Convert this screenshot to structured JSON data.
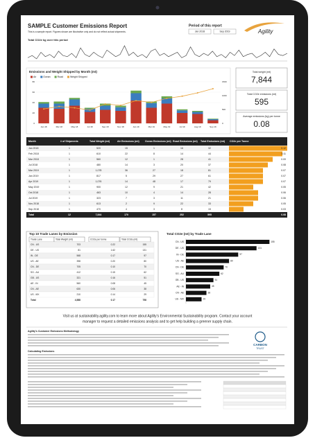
{
  "header": {
    "title": "SAMPLE Customer Emissions Report",
    "subtitle": "This is a sample report. Figures shown are illustrative only and do not reflect actual shipments.",
    "period_label": "Period of this report",
    "from": "Jan 2018",
    "to": "Sep 2019",
    "logo": "Agility"
  },
  "sparkline": {
    "title": "Total CO2e kg over this period",
    "values": [
      3,
      5,
      2,
      8,
      4,
      6,
      3,
      9,
      5,
      4,
      7,
      3,
      12,
      6,
      4,
      8,
      5,
      3,
      10,
      7,
      4,
      6,
      14,
      5,
      8,
      4,
      6,
      3,
      9,
      11,
      5,
      7,
      4,
      6,
      8,
      3,
      5,
      13,
      6,
      4,
      7,
      5,
      9,
      4,
      6,
      3,
      8,
      5,
      10,
      4,
      6,
      7,
      3,
      5,
      8,
      4,
      11,
      6,
      5,
      7
    ]
  },
  "chart_data": {
    "type": "bar",
    "title": "Emissions and Weight Shipped by Month (mt)",
    "categories": [
      "Jan 18",
      "Mar 18",
      "May 18",
      "Jul 18",
      "Sep 18",
      "Nov 18",
      "Jan 19",
      "Mar 19",
      "May 19",
      "Jul 19",
      "Aug 19",
      "Sep 19"
    ],
    "series": [
      {
        "name": "Air",
        "color": "#c0392b",
        "values": [
          30,
          28,
          34,
          22,
          26,
          24,
          44,
          30,
          38,
          20,
          18,
          6
        ]
      },
      {
        "name": "Ocean",
        "color": "#3b7dbf",
        "values": [
          8,
          10,
          12,
          6,
          8,
          7,
          14,
          9,
          10,
          5,
          4,
          2
        ]
      },
      {
        "name": "Road",
        "color": "#6aa84f",
        "values": [
          3,
          4,
          3,
          2,
          4,
          3,
          5,
          3,
          4,
          2,
          2,
          1
        ]
      },
      {
        "name": "Weight Shipped",
        "color": "#e8a33d",
        "axis": "y2",
        "values": [
          520,
          610,
          560,
          480,
          700,
          650,
          820,
          760,
          900,
          980,
          1100,
          1250
        ]
      }
    ],
    "ylim": [
      0,
      80
    ],
    "yticks": [
      0,
      20,
      40,
      60,
      80
    ],
    "y2lim": [
      0,
      1500
    ],
    "y2ticks": [
      0,
      500,
      1000,
      1500
    ]
  },
  "kpis": [
    {
      "label": "Total weight (mt)",
      "value": "7,844"
    },
    {
      "label": "Total CO2e emissions (mt)",
      "value": "595"
    },
    {
      "label": "Average emissions (kg) per tonne",
      "value": "0.08"
    }
  ],
  "table": {
    "columns": [
      "Month",
      "# of Shipments",
      "Total Weight (mt)",
      "Air Emissions (mt)",
      "Ocean Emissions (mt)",
      "Road Emissions (mt)",
      "Total Emissions (mt)",
      "CO2e per Tonne"
    ],
    "rows": [
      [
        "Jan 2018",
        "1",
        "520",
        "15",
        "1",
        "16",
        "32",
        0.12
      ],
      [
        "Feb 2018",
        "1",
        "610",
        "22",
        "8",
        "14",
        "44",
        0.11
      ],
      [
        "Mar 2018",
        "1",
        "560",
        "12",
        "1",
        "28",
        "41",
        0.09
      ],
      [
        "Jul 2018",
        "1",
        "480",
        "14",
        "3",
        "20",
        "37",
        0.08
      ],
      [
        "Mar 2019",
        "1",
        "1,078",
        "36",
        "27",
        "18",
        "81",
        0.07
      ],
      [
        "Jan 2019",
        "1",
        "817",
        "5",
        "29",
        "27",
        "61",
        0.07
      ],
      [
        "Apr 2019",
        "1",
        "1,076",
        "14",
        "48",
        "17",
        "79",
        0.07
      ],
      [
        "May 2019",
        "1",
        "900",
        "12",
        "9",
        "21",
        "42",
        0.05
      ],
      [
        "Oct 2018",
        "1",
        "463",
        "10",
        "4",
        "14",
        "28",
        0.06
      ],
      [
        "Jul 2019",
        "1",
        "323",
        "7",
        "3",
        "11",
        "21",
        0.06
      ],
      [
        "Nov 2018",
        "1",
        "613",
        "2",
        "9",
        "22",
        "33",
        0.05
      ],
      [
        "Sep 2018",
        "1",
        "470",
        "4",
        "3",
        "8",
        "15",
        0.03
      ]
    ],
    "total": [
      "Total",
      "12",
      "7,844",
      "170",
      "157",
      "252",
      "595",
      "0.08"
    ]
  },
  "lanes": {
    "title": "Top 10 Trade Lanes by Emission",
    "columns": [
      "Trade Lane",
      "Total Weight (mt)",
      "CO2e per tonne",
      "Total CO2e (mt)"
    ],
    "rows": [
      [
        "CN - US",
        "703",
        "0.22",
        "155"
      ],
      [
        "DE - US",
        "81",
        "1.62",
        "131"
      ],
      [
        "IN - DE",
        "568",
        "0.17",
        "97"
      ],
      [
        "US - AE",
        "398",
        "0.20",
        "80"
      ],
      [
        "CN - DE",
        "705",
        "0.10",
        "70"
      ],
      [
        "SG - AU",
        "412",
        "0.15",
        "62"
      ],
      [
        "GB - US",
        "321",
        "0.16",
        "51"
      ],
      [
        "AE - IN",
        "560",
        "0.08",
        "45"
      ],
      [
        "CN - AE",
        "630",
        "0.06",
        "38"
      ],
      [
        "US - MX",
        "210",
        "0.14",
        "29"
      ]
    ],
    "total": [
      "Total",
      "4,588",
      "0.17",
      "758"
    ]
  },
  "lane_chart": {
    "title": "Total CO2e (mt) by Trade Lane",
    "categories": [
      "CN - US",
      "DE - US",
      "IN - DE",
      "US - AE",
      "CN - DE",
      "SG - AU",
      "GB - US",
      "AE - IN",
      "CN - AE",
      "US - MX"
    ],
    "values": [
      155,
      131,
      97,
      80,
      70,
      62,
      51,
      45,
      38,
      29
    ],
    "color": "#111111",
    "xlim": [
      0,
      170
    ]
  },
  "footer": {
    "visit": "Visit us at sustainability.agility.com to learn more about Agility's Environmental Sustainability program. Contact your account",
    "visit2": "manager to request a detailed emissions analysis and to get help building a greener supply chain.",
    "method_title": "Agility's Customer Emissions Methodology",
    "scope_title": "Calculating Emissions",
    "carbon": "CARBON",
    "trust": "TRUST"
  }
}
